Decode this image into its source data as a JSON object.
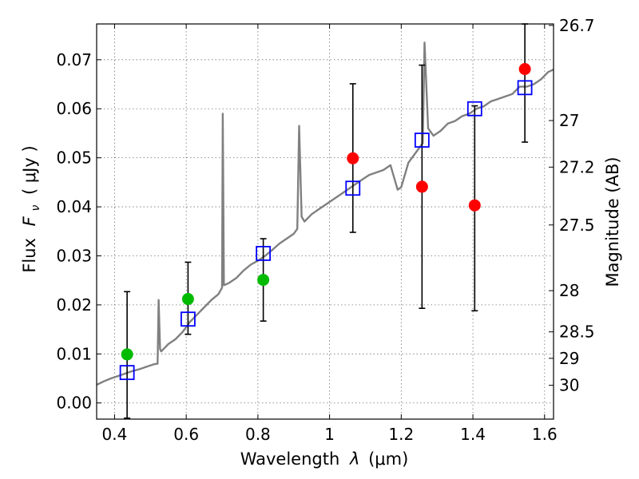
{
  "chart_data": {
    "type": "scatter",
    "xlabel_prefix": "Wavelength",
    "xlabel_symbol": "λ",
    "xlabel_unit": "(μm)",
    "ylabel_prefix": "Flux",
    "ylabel_symbol": "F",
    "ylabel_subscript": "ν",
    "ylabel_unit": "( μJy )",
    "y2label": "Magnitude (AB)",
    "xlim": [
      0.35,
      1.625
    ],
    "ylim": [
      -0.0033,
      0.0773
    ],
    "grid": true,
    "x_ticks": [
      {
        "value": 0.4,
        "label": "0.4"
      },
      {
        "value": 0.6,
        "label": "0.6"
      },
      {
        "value": 0.8,
        "label": "0.8"
      },
      {
        "value": 1.0,
        "label": "1"
      },
      {
        "value": 1.2,
        "label": "1.2"
      },
      {
        "value": 1.4,
        "label": "1.4"
      },
      {
        "value": 1.6,
        "label": "1.6"
      }
    ],
    "y_ticks": [
      {
        "value": 0.0,
        "label": "0.00"
      },
      {
        "value": 0.01,
        "label": "0.01"
      },
      {
        "value": 0.02,
        "label": "0.02"
      },
      {
        "value": 0.03,
        "label": "0.03"
      },
      {
        "value": 0.04,
        "label": "0.04"
      },
      {
        "value": 0.05,
        "label": "0.05"
      },
      {
        "value": 0.06,
        "label": "0.06"
      },
      {
        "value": 0.07,
        "label": "0.07"
      }
    ],
    "mag_ticks": [
      {
        "value": 0.077,
        "label": "26.7"
      },
      {
        "value": 0.0576,
        "label": "27"
      },
      {
        "value": 0.0481,
        "label": "27.2"
      },
      {
        "value": 0.0363,
        "label": "27.5"
      },
      {
        "value": 0.0229,
        "label": "28"
      },
      {
        "value": 0.0145,
        "label": "28.5"
      },
      {
        "value": 0.0091,
        "label": "29"
      },
      {
        "value": 0.0036,
        "label": "30"
      }
    ],
    "spectrum": {
      "name": "model spectrum",
      "color": "#808080",
      "points": [
        [
          0.35,
          0.0037
        ],
        [
          0.37,
          0.0044
        ],
        [
          0.39,
          0.005
        ],
        [
          0.41,
          0.0055
        ],
        [
          0.43,
          0.006
        ],
        [
          0.45,
          0.0065
        ],
        [
          0.47,
          0.0069
        ],
        [
          0.49,
          0.0074
        ],
        [
          0.51,
          0.0079
        ],
        [
          0.52,
          0.008
        ],
        [
          0.523,
          0.021
        ],
        [
          0.527,
          0.011
        ],
        [
          0.53,
          0.0105
        ],
        [
          0.55,
          0.012
        ],
        [
          0.57,
          0.013
        ],
        [
          0.59,
          0.0145
        ],
        [
          0.61,
          0.0165
        ],
        [
          0.63,
          0.018
        ],
        [
          0.65,
          0.0195
        ],
        [
          0.67,
          0.021
        ],
        [
          0.69,
          0.0222
        ],
        [
          0.7,
          0.0235
        ],
        [
          0.702,
          0.059
        ],
        [
          0.705,
          0.024
        ],
        [
          0.72,
          0.0245
        ],
        [
          0.74,
          0.0255
        ],
        [
          0.76,
          0.027
        ],
        [
          0.78,
          0.0282
        ],
        [
          0.8,
          0.029
        ],
        [
          0.82,
          0.03
        ],
        [
          0.84,
          0.0312
        ],
        [
          0.86,
          0.0325
        ],
        [
          0.88,
          0.0335
        ],
        [
          0.9,
          0.0345
        ],
        [
          0.91,
          0.0355
        ],
        [
          0.915,
          0.0565
        ],
        [
          0.922,
          0.038
        ],
        [
          0.93,
          0.037
        ],
        [
          0.95,
          0.0385
        ],
        [
          0.97,
          0.0395
        ],
        [
          0.99,
          0.0405
        ],
        [
          1.01,
          0.0415
        ],
        [
          1.03,
          0.0425
        ],
        [
          1.05,
          0.0435
        ],
        [
          1.07,
          0.0445
        ],
        [
          1.09,
          0.0455
        ],
        [
          1.11,
          0.0465
        ],
        [
          1.13,
          0.047
        ],
        [
          1.15,
          0.0475
        ],
        [
          1.17,
          0.0485
        ],
        [
          1.19,
          0.0435
        ],
        [
          1.2,
          0.044
        ],
        [
          1.22,
          0.049
        ],
        [
          1.24,
          0.051
        ],
        [
          1.26,
          0.053
        ],
        [
          1.265,
          0.0735
        ],
        [
          1.275,
          0.056
        ],
        [
          1.29,
          0.0545
        ],
        [
          1.31,
          0.0555
        ],
        [
          1.33,
          0.057
        ],
        [
          1.35,
          0.0575
        ],
        [
          1.37,
          0.0585
        ],
        [
          1.39,
          0.059
        ],
        [
          1.41,
          0.06
        ],
        [
          1.43,
          0.0605
        ],
        [
          1.45,
          0.0615
        ],
        [
          1.47,
          0.062
        ],
        [
          1.49,
          0.0625
        ],
        [
          1.51,
          0.063
        ],
        [
          1.53,
          0.0645
        ],
        [
          1.55,
          0.0645
        ],
        [
          1.57,
          0.065
        ],
        [
          1.59,
          0.066
        ],
        [
          1.61,
          0.0675
        ],
        [
          1.625,
          0.068
        ]
      ]
    },
    "red_points": {
      "name": "observed (red)",
      "color": "#ff0000",
      "points": [
        {
          "x": 1.065,
          "y": 0.0499,
          "ylo": 0.0348,
          "yhi": 0.0651
        },
        {
          "x": 1.258,
          "y": 0.0441,
          "ylo": 0.0193,
          "yhi": 0.0689
        },
        {
          "x": 1.405,
          "y": 0.0403,
          "ylo": 0.0188,
          "yhi": 0.0606
        },
        {
          "x": 1.545,
          "y": 0.0681,
          "ylo": 0.0532,
          "yhi": 0.0773
        }
      ]
    },
    "green_points": {
      "name": "observed (green)",
      "color": "#00bb00",
      "points": [
        {
          "x": 0.435,
          "y": 0.0099,
          "ylo": -0.0031,
          "yhi": 0.0227
        },
        {
          "x": 0.605,
          "y": 0.0212,
          "ylo": 0.014,
          "yhi": 0.0287
        },
        {
          "x": 0.815,
          "y": 0.0251,
          "ylo": 0.0167,
          "yhi": 0.0335
        }
      ]
    },
    "blue_squares": {
      "name": "model photometry",
      "color": "#0000ff",
      "points": [
        {
          "x": 0.435,
          "y": 0.0062
        },
        {
          "x": 0.605,
          "y": 0.0171
        },
        {
          "x": 0.815,
          "y": 0.0305
        },
        {
          "x": 1.065,
          "y": 0.0438
        },
        {
          "x": 1.258,
          "y": 0.0536
        },
        {
          "x": 1.405,
          "y": 0.06
        },
        {
          "x": 1.545,
          "y": 0.0643
        }
      ]
    }
  }
}
